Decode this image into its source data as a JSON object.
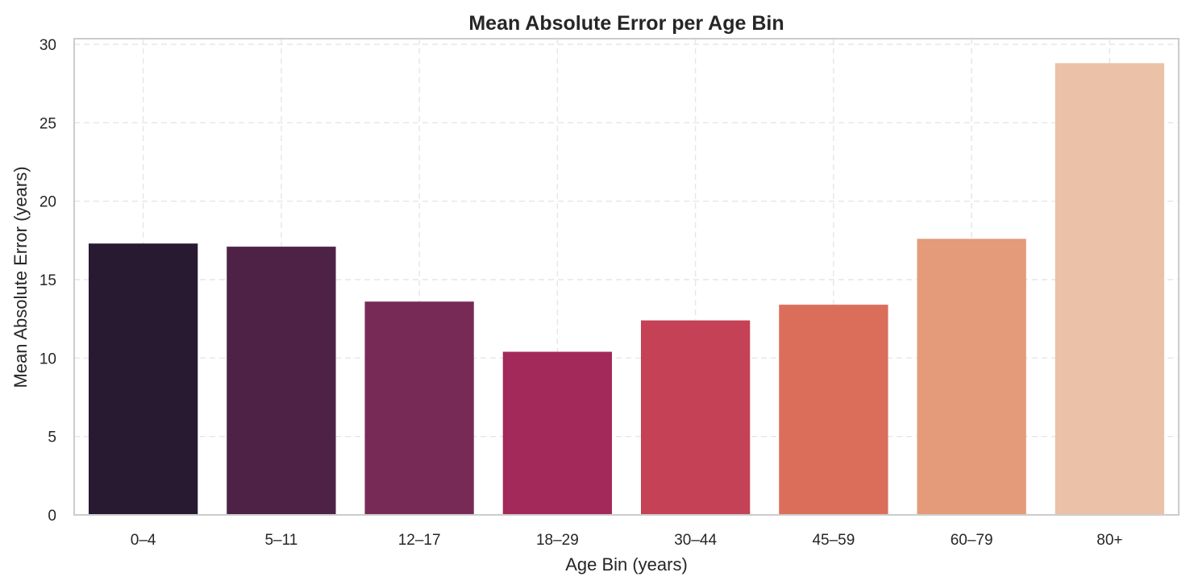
{
  "chart_data": {
    "type": "bar",
    "title": "Mean Absolute Error per Age Bin",
    "xlabel": "Age Bin (years)",
    "ylabel": "Mean Absolute Error (years)",
    "categories": [
      "0–4",
      "5–11",
      "12–17",
      "18–29",
      "30–44",
      "45–59",
      "60–79",
      "80+"
    ],
    "values": [
      17.3,
      17.1,
      13.6,
      10.4,
      12.4,
      13.4,
      17.6,
      28.8
    ],
    "colors": [
      "#281a31",
      "#4d2246",
      "#782a57",
      "#a2295a",
      "#c54155",
      "#db6e5b",
      "#e39b7a",
      "#ebc1a7"
    ],
    "ylim": [
      0,
      30
    ],
    "yticks": [
      0,
      5,
      10,
      15,
      20,
      25,
      30
    ],
    "grid": true,
    "grid_style": "dashed",
    "legend": "none"
  }
}
